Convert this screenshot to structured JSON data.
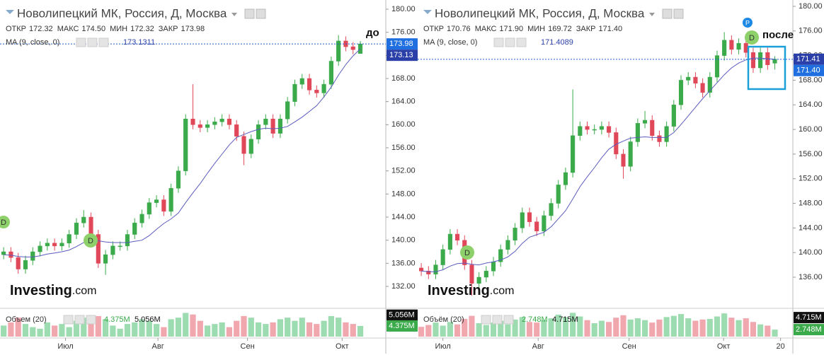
{
  "chart_data": [
    {
      "type": "candlestick",
      "title": "Новолипецкий МК, Россия, Д, Москва",
      "stats": [
        {
          "name": "ОТКР",
          "value": "172.32"
        },
        {
          "name": "МАКС",
          "value": "174.50"
        },
        {
          "name": "МИН",
          "value": "172.32"
        },
        {
          "name": "ЗАКР",
          "value": "173.98"
        }
      ],
      "ma_label": "MA (9, close, 0)",
      "ma_value": "173.1311",
      "ma_axis_label": "173.13",
      "annotation": "до",
      "markers": [
        "D",
        "D"
      ],
      "logo_main": "Investing",
      "logo_suffix": ".com",
      "open": [
        137.5,
        138,
        137,
        135,
        136.5,
        138,
        139,
        139.5,
        139,
        139.5,
        141,
        143,
        144,
        141,
        136,
        137.5,
        139,
        139,
        141,
        143,
        144.5,
        146.5,
        147,
        145,
        149,
        152,
        161,
        160,
        159.5,
        160,
        160.5,
        161,
        160,
        158,
        155,
        157.5,
        160,
        161,
        158.5,
        161,
        164,
        167,
        168,
        166,
        165.5,
        167,
        171,
        174.5,
        173.5,
        172.32
      ],
      "high": [
        138.8,
        138.8,
        137.8,
        137.3,
        138.8,
        139.8,
        140.3,
        140.3,
        140.3,
        141.8,
        143.8,
        145.2,
        144.8,
        141.8,
        138.3,
        139.8,
        139.8,
        141.8,
        143.8,
        145.3,
        147.3,
        147.8,
        147.8,
        149.8,
        152.8,
        161.8,
        167,
        160.8,
        160.8,
        161.3,
        161.8,
        161.8,
        160.8,
        158.8,
        158.3,
        160.8,
        161.8,
        161.8,
        161.8,
        164.8,
        167.8,
        168.8,
        168.8,
        166.8,
        167.8,
        171.8,
        175.5,
        175.3,
        174.3,
        174.5
      ],
      "low": [
        136.7,
        136.2,
        134.2,
        134.2,
        135.7,
        137.2,
        138.2,
        138.2,
        138.2,
        138.7,
        140.2,
        142.2,
        140.2,
        135.2,
        134,
        136.7,
        138.2,
        138.2,
        140.2,
        142.2,
        143.7,
        145.7,
        144.2,
        144.2,
        148.2,
        151.2,
        159.2,
        158.7,
        158.7,
        159.2,
        159.7,
        159.2,
        157.2,
        153,
        154.2,
        156.7,
        159.2,
        157.7,
        157.7,
        160.2,
        163.2,
        166.2,
        165.2,
        164.7,
        164.7,
        166.2,
        170.2,
        172.7,
        172.2,
        172.32
      ],
      "close": [
        138,
        137,
        135,
        136.5,
        138,
        139,
        139.5,
        139,
        139.5,
        141,
        143,
        144,
        141,
        136,
        137.5,
        139,
        139,
        141,
        143,
        144.5,
        146.5,
        147,
        145,
        149,
        152,
        161,
        160,
        159.5,
        160,
        160.5,
        161,
        160,
        158,
        155,
        157.5,
        160,
        161,
        158.5,
        161,
        164,
        167,
        168,
        166,
        165.5,
        167,
        171,
        174.5,
        173.5,
        173,
        173.98
      ],
      "ma": [
        137.5,
        137.4,
        137.2,
        137.1,
        137.1,
        137.3,
        137.6,
        137.8,
        138.0,
        138.3,
        138.9,
        139.6,
        140.1,
        139.9,
        139.7,
        139.6,
        139.6,
        139.6,
        139.8,
        140.0,
        140.8,
        141.9,
        142.9,
        143.7,
        144.7,
        146.5,
        148.2,
        149.8,
        151.6,
        153.3,
        154.9,
        156.5,
        157.8,
        158.3,
        158.8,
        159.2,
        159.4,
        159.3,
        159.4,
        159.7,
        160.5,
        161.3,
        162.3,
        163.3,
        164.8,
        166.5,
        168.6,
        170.4,
        171.9,
        173.1311
      ],
      "volume": [
        4.4,
        4.6,
        4.9,
        4.5,
        4.3,
        4.2,
        4.6,
        4.4,
        4.5,
        4.3,
        4.7,
        4.9,
        4.6,
        5.0,
        4.8,
        4.4,
        4.2,
        4.5,
        4.6,
        4.8,
        4.7,
        4.5,
        4.3,
        4.8,
        4.9,
        5.2,
        5.1,
        4.7,
        4.4,
        4.5,
        4.6,
        4.3,
        4.7,
        5.0,
        4.9,
        4.6,
        4.5,
        4.6,
        4.8,
        4.9,
        4.7,
        4.9,
        4.6,
        4.5,
        4.7,
        5.0,
        4.9,
        4.6,
        4.5,
        4.375
      ],
      "volume_label": "Объем (20)",
      "volume_last": {
        "value": 4.375,
        "label": "4.375M"
      },
      "volume_ma": {
        "value": 5.056,
        "label": "5.056M"
      },
      "volume_ylim": [
        3.7,
        5.4
      ],
      "ylim": [
        128.33,
        181.59
      ],
      "yticks": [
        {
          "value": 132,
          "label": "132.00"
        },
        {
          "value": 136,
          "label": "136.00"
        },
        {
          "value": 140,
          "label": "140.00"
        },
        {
          "value": 144,
          "label": "144.00"
        },
        {
          "value": 148,
          "label": "148.00"
        },
        {
          "value": 152,
          "label": "152.00"
        },
        {
          "value": 156,
          "label": "156.00"
        },
        {
          "value": 160,
          "label": "160.00"
        },
        {
          "value": 164,
          "label": "164.00"
        },
        {
          "value": 168,
          "label": "168.00"
        },
        {
          "value": 172,
          "label": "172.00"
        },
        {
          "value": 176,
          "label": "176.00"
        },
        {
          "value": 180,
          "label": "180.00"
        }
      ],
      "xlim": [
        -0.5,
        52.5
      ],
      "xticks": [
        {
          "value": 8.5,
          "label": "Июл"
        },
        {
          "value": 21.2,
          "label": "Авг"
        },
        {
          "value": 33.5,
          "label": "Сен"
        },
        {
          "value": 46.5,
          "label": "Окт"
        }
      ],
      "up_color": "#3aaa4a",
      "down_color": "#e0485a",
      "ma_color": "#5b5bbf"
    },
    {
      "type": "candlestick",
      "title": "Новолипецкий МК, Россия, Д, Москва",
      "stats": [
        {
          "name": "ОТКР",
          "value": "170.76"
        },
        {
          "name": "МАКС",
          "value": "171.90"
        },
        {
          "name": "МИН",
          "value": "169.72"
        },
        {
          "name": "ЗАКР",
          "value": "171.40"
        }
      ],
      "ma_label": "MA (9, close, 0)",
      "ma_value": "171.4089",
      "ma_axis_label": "171.41",
      "annotation": "после",
      "markers": [
        "D",
        "D",
        "P"
      ],
      "logo_main": "Investing",
      "logo_suffix": ".com",
      "open": [
        137.5,
        137,
        136.5,
        138,
        140.5,
        143,
        142,
        138,
        135,
        136,
        137,
        138.5,
        140.5,
        142,
        144,
        146.5,
        145,
        143.5,
        146,
        148,
        151,
        153,
        159,
        160.5,
        160,
        160,
        160.5,
        159.5,
        156,
        154,
        158,
        161,
        161.5,
        159,
        158,
        160.5,
        164,
        168,
        168.5,
        167.5,
        166,
        168.5,
        172,
        174.5,
        173,
        174,
        172.5,
        170,
        172.5,
        170.76
      ],
      "high": [
        138.3,
        137.8,
        138.8,
        141.3,
        143.8,
        143.8,
        142.8,
        138.8,
        136.8,
        137.8,
        139.3,
        141.3,
        142.8,
        144.8,
        147.3,
        147.3,
        145.8,
        146.8,
        148.8,
        151.8,
        153.8,
        166.5,
        161.3,
        161.3,
        160.8,
        161.3,
        161.3,
        160.3,
        156.8,
        158.8,
        161.8,
        163,
        162.3,
        159.8,
        161.3,
        164.8,
        168.8,
        169.3,
        169.3,
        168.3,
        169.3,
        172.8,
        175.8,
        175.3,
        174.8,
        174.8,
        173.3,
        173.3,
        173.3,
        171.9
      ],
      "low": [
        136.2,
        135.7,
        135.7,
        137.2,
        139.7,
        141.2,
        137.2,
        133,
        134.2,
        135.2,
        136.2,
        137.7,
        139.7,
        141.2,
        143.2,
        144.2,
        142.7,
        142.7,
        145.2,
        147.2,
        150.2,
        152.2,
        158.2,
        159.2,
        159.2,
        159.2,
        158.7,
        155.2,
        152,
        153.2,
        157.2,
        160.2,
        158.2,
        157.2,
        157.2,
        159.7,
        163.2,
        167.2,
        166.7,
        165.2,
        165.2,
        167.7,
        171.2,
        172.2,
        172.2,
        171.7,
        169.2,
        169.2,
        169.7,
        169.72
      ],
      "close": [
        137,
        136.5,
        138,
        140.5,
        143,
        142,
        138,
        135,
        136,
        137,
        138.5,
        140.5,
        142,
        144,
        146.5,
        145,
        143.5,
        146,
        148,
        151,
        153,
        159,
        160.5,
        160,
        160,
        160.5,
        159.5,
        156,
        154,
        158,
        161,
        161.5,
        159,
        158,
        160.5,
        164,
        168,
        168.5,
        167.5,
        166,
        168.5,
        172,
        174.5,
        173,
        174,
        172.5,
        170,
        172.5,
        170.5,
        171.4
      ],
      "ma": [
        137,
        136.9,
        136.9,
        137.2,
        137.8,
        138.2,
        138.3,
        138.1,
        138.0,
        138.3,
        138.5,
        138.8,
        139.3,
        140.2,
        141.5,
        142.5,
        142.9,
        143.3,
        144.2,
        145.5,
        146.8,
        148.7,
        150.7,
        152.3,
        153.8,
        155.4,
        156.8,
        157.6,
        158.1,
        158.6,
        158.7,
        158.8,
        158.7,
        158.7,
        158.7,
        159.5,
        160.8,
        162.2,
        163.6,
        165.0,
        166.3,
        167.6,
        168.9,
        170.0,
        170.8,
        171.3,
        171.6,
        171.6,
        171.5,
        171.4089
      ],
      "volume": [
        3.2,
        3.5,
        3.9,
        3.4,
        4.0,
        3.6,
        4.5,
        5.0,
        3.8,
        3.5,
        3.9,
        4.2,
        3.6,
        4.4,
        4.8,
        4.0,
        3.9,
        4.3,
        4.6,
        5.2,
        4.8,
        5.5,
        4.9,
        4.3,
        3.8,
        4.2,
        4.0,
        4.7,
        5.1,
        4.4,
        4.6,
        4.3,
        3.9,
        4.4,
        4.8,
        5.0,
        5.3,
        4.6,
        4.2,
        4.4,
        4.5,
        4.9,
        5.4,
        4.7,
        4.3,
        4.6,
        4.0,
        3.6,
        3.4,
        2.748
      ],
      "volume_label": "Объём (20)",
      "volume_last": {
        "value": 2.748,
        "label": "2.748M"
      },
      "volume_ma": {
        "value": 4.715,
        "label": "4.715M"
      },
      "volume_ylim": [
        1.6,
        6.0
      ],
      "ylim": [
        131.06,
        181.03
      ],
      "yticks": [
        {
          "value": 136,
          "label": "136.00"
        },
        {
          "value": 140,
          "label": "140.00"
        },
        {
          "value": 144,
          "label": "144.00"
        },
        {
          "value": 148,
          "label": "148.00"
        },
        {
          "value": 152,
          "label": "152.00"
        },
        {
          "value": 156,
          "label": "156.00"
        },
        {
          "value": 160,
          "label": "160.00"
        },
        {
          "value": 164,
          "label": "164.00"
        },
        {
          "value": 168,
          "label": "168.00"
        },
        {
          "value": 172,
          "label": "172.00"
        },
        {
          "value": 176,
          "label": "176.00"
        },
        {
          "value": 180,
          "label": "180.00"
        }
      ],
      "xlim": [
        -0.5,
        51.5
      ],
      "xticks": [
        {
          "value": 3.0,
          "label": "Июл"
        },
        {
          "value": 16.2,
          "label": "Авг"
        },
        {
          "value": 28.8,
          "label": "Сен"
        },
        {
          "value": 41.9,
          "label": "Окт"
        },
        {
          "value": 49.8,
          "label": "20"
        }
      ],
      "up_color": "#3aaa4a",
      "down_color": "#e0485a",
      "ma_color": "#5b5bbf"
    }
  ]
}
